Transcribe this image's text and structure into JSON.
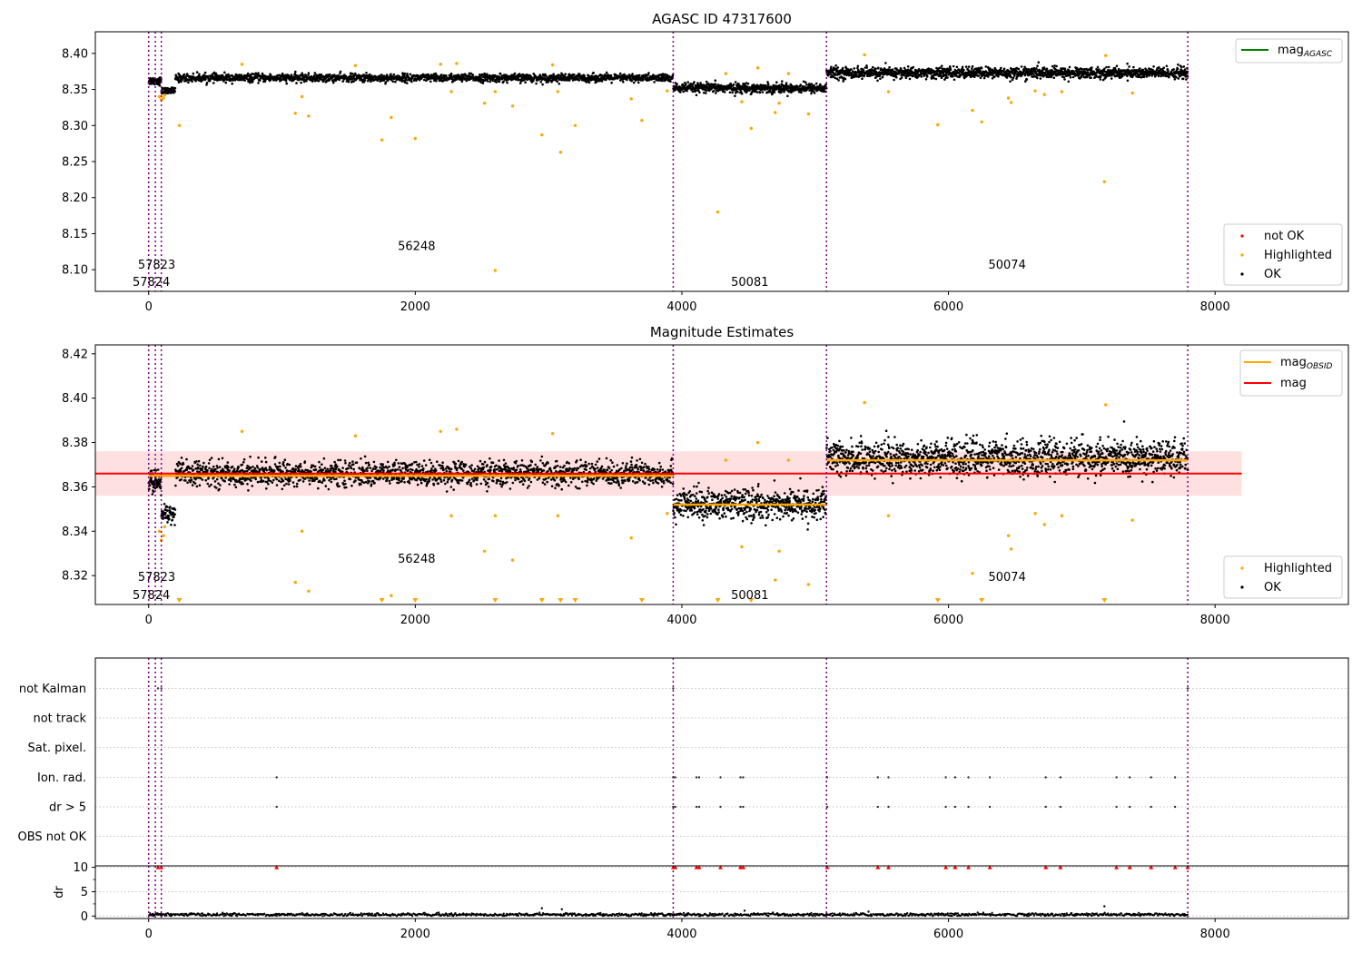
{
  "figure": {
    "title_top": "AGASC ID 47317600",
    "title_middle": "Magnitude Estimates"
  },
  "colors": {
    "ok": "#000000",
    "highlighted": "#ffa500",
    "not_ok": "#ff0000",
    "agasc_line": "#008000",
    "obs_boundary": "#800080",
    "mean_line": "#ff0000",
    "mean_band": "#ffcccc",
    "obsid_line": "#ffa500",
    "grid": "#b0b0b0"
  },
  "chart_data": [
    {
      "type": "scatter",
      "title": "AGASC ID 47317600",
      "xlim": [
        -400,
        9000
      ],
      "ylim": [
        8.07,
        8.43
      ],
      "xticks": [
        0,
        2000,
        4000,
        6000,
        8000
      ],
      "yticks": [
        8.1,
        8.15,
        8.2,
        8.25,
        8.3,
        8.35,
        8.4
      ],
      "ytick_labels": [
        "8.10",
        "8.15",
        "8.20",
        "8.25",
        "8.30",
        "8.35",
        "8.40"
      ],
      "obs_boundaries": [
        0,
        50,
        95,
        3935,
        5085,
        7795
      ],
      "obs_labels": [
        {
          "text": "57823",
          "x": 60,
          "y": 8.107
        },
        {
          "text": "57824",
          "x": 20,
          "y": 8.083
        },
        {
          "text": "56248",
          "x": 2010,
          "y": 8.133
        },
        {
          "text": "50081",
          "x": 4510,
          "y": 8.083
        },
        {
          "text": "50074",
          "x": 6440,
          "y": 8.107
        }
      ],
      "segments": [
        {
          "x0": 0,
          "x1": 95,
          "mean": 8.362,
          "spread": 0.005,
          "n": 60
        },
        {
          "x0": 95,
          "x1": 200,
          "mean": 8.348,
          "spread": 0.004,
          "n": 60
        },
        {
          "x0": 200,
          "x1": 3935,
          "mean": 8.366,
          "spread": 0.005,
          "n": 1800
        },
        {
          "x0": 3935,
          "x1": 5085,
          "mean": 8.352,
          "spread": 0.006,
          "n": 650
        },
        {
          "x0": 5085,
          "x1": 7795,
          "mean": 8.373,
          "spread": 0.007,
          "n": 1500
        }
      ],
      "highlighted_points": [
        [
          80,
          8.34
        ],
        [
          95,
          8.336
        ],
        [
          110,
          8.338
        ],
        [
          120,
          8.342
        ],
        [
          230,
          8.3
        ],
        [
          700,
          8.385
        ],
        [
          1100,
          8.317
        ],
        [
          1150,
          8.34
        ],
        [
          1200,
          8.313
        ],
        [
          1550,
          8.383
        ],
        [
          1750,
          8.28
        ],
        [
          1820,
          8.311
        ],
        [
          2000,
          8.282
        ],
        [
          2190,
          8.385
        ],
        [
          2270,
          8.347
        ],
        [
          2310,
          8.386
        ],
        [
          2520,
          8.331
        ],
        [
          2600,
          8.347
        ],
        [
          2600,
          8.099
        ],
        [
          2730,
          8.327
        ],
        [
          2950,
          8.287
        ],
        [
          3030,
          8.384
        ],
        [
          3070,
          8.347
        ],
        [
          3090,
          8.263
        ],
        [
          3200,
          8.3
        ],
        [
          3620,
          8.337
        ],
        [
          3700,
          8.307
        ],
        [
          3890,
          8.348
        ],
        [
          4270,
          8.18
        ],
        [
          4330,
          8.372
        ],
        [
          4450,
          8.333
        ],
        [
          4520,
          8.296
        ],
        [
          4570,
          8.38
        ],
        [
          4700,
          8.318
        ],
        [
          4730,
          8.331
        ],
        [
          4800,
          8.372
        ],
        [
          4950,
          8.316
        ],
        [
          5370,
          8.398
        ],
        [
          5550,
          8.347
        ],
        [
          5920,
          8.301
        ],
        [
          6180,
          8.321
        ],
        [
          6250,
          8.305
        ],
        [
          6450,
          8.338
        ],
        [
          6470,
          8.332
        ],
        [
          6650,
          8.348
        ],
        [
          6720,
          8.343
        ],
        [
          6850,
          8.347
        ],
        [
          7170,
          8.222
        ],
        [
          7180,
          8.397
        ],
        [
          7380,
          8.345
        ]
      ],
      "legend_upper": [
        "mag_AGASC"
      ],
      "legend_lower": [
        "not OK",
        "Highlighted",
        "OK"
      ]
    },
    {
      "type": "scatter",
      "title": "Magnitude Estimates",
      "xlim": [
        -400,
        9000
      ],
      "ylim": [
        8.307,
        8.424
      ],
      "xticks": [
        0,
        2000,
        4000,
        6000,
        8000
      ],
      "yticks": [
        8.32,
        8.34,
        8.36,
        8.38,
        8.4,
        8.42
      ],
      "ytick_labels": [
        "8.32",
        "8.34",
        "8.36",
        "8.38",
        "8.40",
        "8.42"
      ],
      "obs_boundaries": [
        0,
        50,
        95,
        3935,
        5085,
        7795
      ],
      "mean_mag": 8.366,
      "mean_band": [
        8.356,
        8.376
      ],
      "mean_x_range": [
        -400,
        8200
      ],
      "obsid_lines": [
        {
          "x0": 0,
          "x1": 3935,
          "y": 8.365
        },
        {
          "x0": 3935,
          "x1": 5085,
          "y": 8.352
        },
        {
          "x0": 5085,
          "x1": 7795,
          "y": 8.372
        }
      ],
      "obs_labels": [
        {
          "text": "57823",
          "x": 60,
          "y": 8.3195
        },
        {
          "text": "57824",
          "x": 20,
          "y": 8.3113
        },
        {
          "text": "56248",
          "x": 2010,
          "y": 8.3277
        },
        {
          "text": "50081",
          "x": 4510,
          "y": 8.3113
        },
        {
          "text": "50074",
          "x": 6440,
          "y": 8.3195
        }
      ],
      "segments": [
        {
          "x0": 0,
          "x1": 95,
          "mean": 8.362,
          "spread": 0.005,
          "n": 60
        },
        {
          "x0": 95,
          "x1": 200,
          "mean": 8.348,
          "spread": 0.004,
          "n": 60
        },
        {
          "x0": 200,
          "x1": 3935,
          "mean": 8.366,
          "spread": 0.005,
          "n": 1800
        },
        {
          "x0": 3935,
          "x1": 5085,
          "mean": 8.352,
          "spread": 0.006,
          "n": 650
        },
        {
          "x0": 5085,
          "x1": 7795,
          "mean": 8.373,
          "spread": 0.007,
          "n": 1500
        }
      ],
      "highlighted_points": [
        [
          80,
          8.34
        ],
        [
          95,
          8.336
        ],
        [
          110,
          8.338
        ],
        [
          120,
          8.342
        ],
        [
          700,
          8.385
        ],
        [
          1100,
          8.317
        ],
        [
          1150,
          8.34
        ],
        [
          1200,
          8.313
        ],
        [
          1550,
          8.383
        ],
        [
          1820,
          8.311
        ],
        [
          2190,
          8.385
        ],
        [
          2270,
          8.347
        ],
        [
          2310,
          8.386
        ],
        [
          2520,
          8.331
        ],
        [
          2600,
          8.347
        ],
        [
          2730,
          8.327
        ],
        [
          3030,
          8.384
        ],
        [
          3070,
          8.347
        ],
        [
          3620,
          8.337
        ],
        [
          3890,
          8.348
        ],
        [
          4330,
          8.372
        ],
        [
          4450,
          8.333
        ],
        [
          4570,
          8.38
        ],
        [
          4700,
          8.318
        ],
        [
          4730,
          8.331
        ],
        [
          4800,
          8.372
        ],
        [
          4950,
          8.316
        ],
        [
          5370,
          8.398
        ],
        [
          5550,
          8.347
        ],
        [
          6180,
          8.321
        ],
        [
          6450,
          8.338
        ],
        [
          6470,
          8.332
        ],
        [
          6650,
          8.348
        ],
        [
          6720,
          8.343
        ],
        [
          6850,
          8.347
        ],
        [
          7180,
          8.397
        ],
        [
          7380,
          8.345
        ]
      ],
      "offscale_markers": [
        230,
        1750,
        2000,
        2600,
        2950,
        3090,
        3200,
        3700,
        4270,
        4520,
        5920,
        6250,
        7170
      ],
      "legend_upper": [
        "mag_OBSID",
        "mag"
      ],
      "legend_lower": [
        "Highlighted",
        "OK"
      ]
    },
    {
      "type": "scatter",
      "title": "",
      "xlim": [
        -400,
        9000
      ],
      "categories": [
        "not Kalman",
        "not track",
        "Sat. pixel.",
        "Ion. rad.",
        "dr > 5",
        "OBS not OK"
      ],
      "obs_boundaries": [
        0,
        50,
        95,
        3935,
        5085,
        7795
      ],
      "flag_points": {
        "not Kalman": [
          70,
          95,
          3935,
          7795
        ],
        "Ion. rad.": [
          960,
          3935,
          3950,
          4110,
          4130,
          4290,
          4440,
          4460,
          5090,
          5470,
          5550,
          5980,
          6050,
          6150,
          6310,
          6730,
          6840,
          7260,
          7360,
          7520,
          7700
        ],
        "dr > 5": [
          960,
          3935,
          3950,
          4110,
          4130,
          4290,
          4440,
          4460,
          5090,
          5470,
          5550,
          5980,
          6050,
          6150,
          6310,
          6730,
          6840,
          7260,
          7360,
          7520,
          7700
        ]
      }
    },
    {
      "type": "scatter",
      "title": "",
      "ylabel": "dr",
      "xlim": [
        -400,
        9000
      ],
      "ylim": [
        -0.5,
        10.3
      ],
      "yticks": [
        0,
        5,
        10
      ],
      "ytick_labels": [
        "0",
        "5",
        "10"
      ],
      "xticks": [
        0,
        2000,
        4000,
        6000,
        8000
      ],
      "obs_boundaries": [
        0,
        50,
        95,
        3935,
        5085,
        7795
      ],
      "dr_typical": 0.3,
      "dr_outliers": [
        [
          2950,
          1.6
        ],
        [
          3100,
          1.4
        ],
        [
          7170,
          2.0
        ],
        [
          4470,
          1.1
        ],
        [
          5400,
          0.9
        ]
      ],
      "clipped_points": [
        70,
        95,
        960,
        3935,
        3950,
        4110,
        4130,
        4290,
        4440,
        4460,
        5090,
        5470,
        5550,
        5980,
        6050,
        6150,
        6310,
        6730,
        6840,
        7260,
        7360,
        7520,
        7700,
        7795
      ]
    }
  ]
}
